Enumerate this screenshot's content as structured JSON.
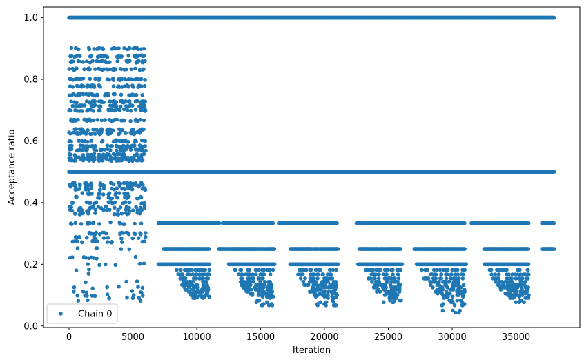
{
  "chart_data": {
    "type": "scatter",
    "xlabel": "Iteration",
    "ylabel": "Acceptance ratio",
    "xlim": [
      -2000,
      40000
    ],
    "ylim": [
      -0.005,
      1.035
    ],
    "xticks": [
      0,
      5000,
      10000,
      15000,
      20000,
      25000,
      30000,
      35000
    ],
    "xtick_labels": [
      "0",
      "5000",
      "10000",
      "15000",
      "20000",
      "25000",
      "30000",
      "35000"
    ],
    "yticks": [
      0.0,
      0.2,
      0.4,
      0.6,
      0.8,
      1.0
    ],
    "ytick_labels": [
      "0.0",
      "0.2",
      "0.4",
      "0.6",
      "0.8",
      "1.0"
    ],
    "grid": false,
    "legend": "lower-left",
    "marker_color": "#1f77b4",
    "series": [
      {
        "name": "Chain 0",
        "description_of_points": "Dense band of points",
        "bands": [
          {
            "y": 1.0,
            "x_range": [
              0,
              38000
            ]
          },
          {
            "y": 0.5,
            "x_range": [
              0,
              38000
            ]
          },
          {
            "y": 0.3333,
            "x_range": [
              7000,
              38000
            ],
            "gaps": [
              [
                11800,
                12000
              ],
              [
                16000,
                16400
              ],
              [
                21000,
                22500
              ],
              [
                31000,
                31500
              ],
              [
                36000,
                37000
              ]
            ]
          },
          {
            "y": 0.25,
            "x_range": [
              7400,
              38000
            ],
            "gaps": [
              [
                11000,
                11700
              ],
              [
                16100,
                17300
              ],
              [
                21100,
                22700
              ],
              [
                26000,
                27000
              ],
              [
                31000,
                32500
              ],
              [
                36000,
                37000
              ]
            ]
          },
          {
            "y": 0.2,
            "x_range": [
              7000,
              36000
            ],
            "gaps": [
              [
                11000,
                12500
              ],
              [
                16100,
                17300
              ],
              [
                21100,
                22600
              ],
              [
                26100,
                27200
              ],
              [
                31100,
                32500
              ]
            ]
          }
        ],
        "early_region": {
          "x_range": [
            0,
            6000
          ],
          "y_levels": [
            0.9,
            0.875,
            0.857,
            0.833,
            0.8,
            0.778,
            0.75,
            0.727,
            0.714,
            0.7,
            0.667,
            0.636,
            0.625,
            0.6,
            0.583,
            0.571,
            0.556,
            0.545,
            0.538,
            0.462,
            0.455,
            0.444,
            0.429,
            0.417,
            0.4,
            0.385,
            0.375,
            0.364,
            0.333,
            0.3,
            0.286,
            0.273,
            0.25,
            0.222,
            0.2,
            0.182,
            0.167,
            0.143,
            0.125,
            0.111,
            0.1,
            0.091,
            0.083
          ]
        },
        "tails": [
          {
            "x_range": [
              8000,
              11000
            ],
            "y_min": 0.09
          },
          {
            "x_range": [
              12500,
              16000
            ],
            "y_min": 0.067
          },
          {
            "x_range": [
              17300,
              21000
            ],
            "y_min": 0.067
          },
          {
            "x_range": [
              22800,
              26000
            ],
            "y_min": 0.077
          },
          {
            "x_range": [
              27000,
              31000
            ],
            "y_min": 0.043
          },
          {
            "x_range": [
              32500,
              36000
            ],
            "y_min": 0.077
          }
        ]
      }
    ]
  }
}
